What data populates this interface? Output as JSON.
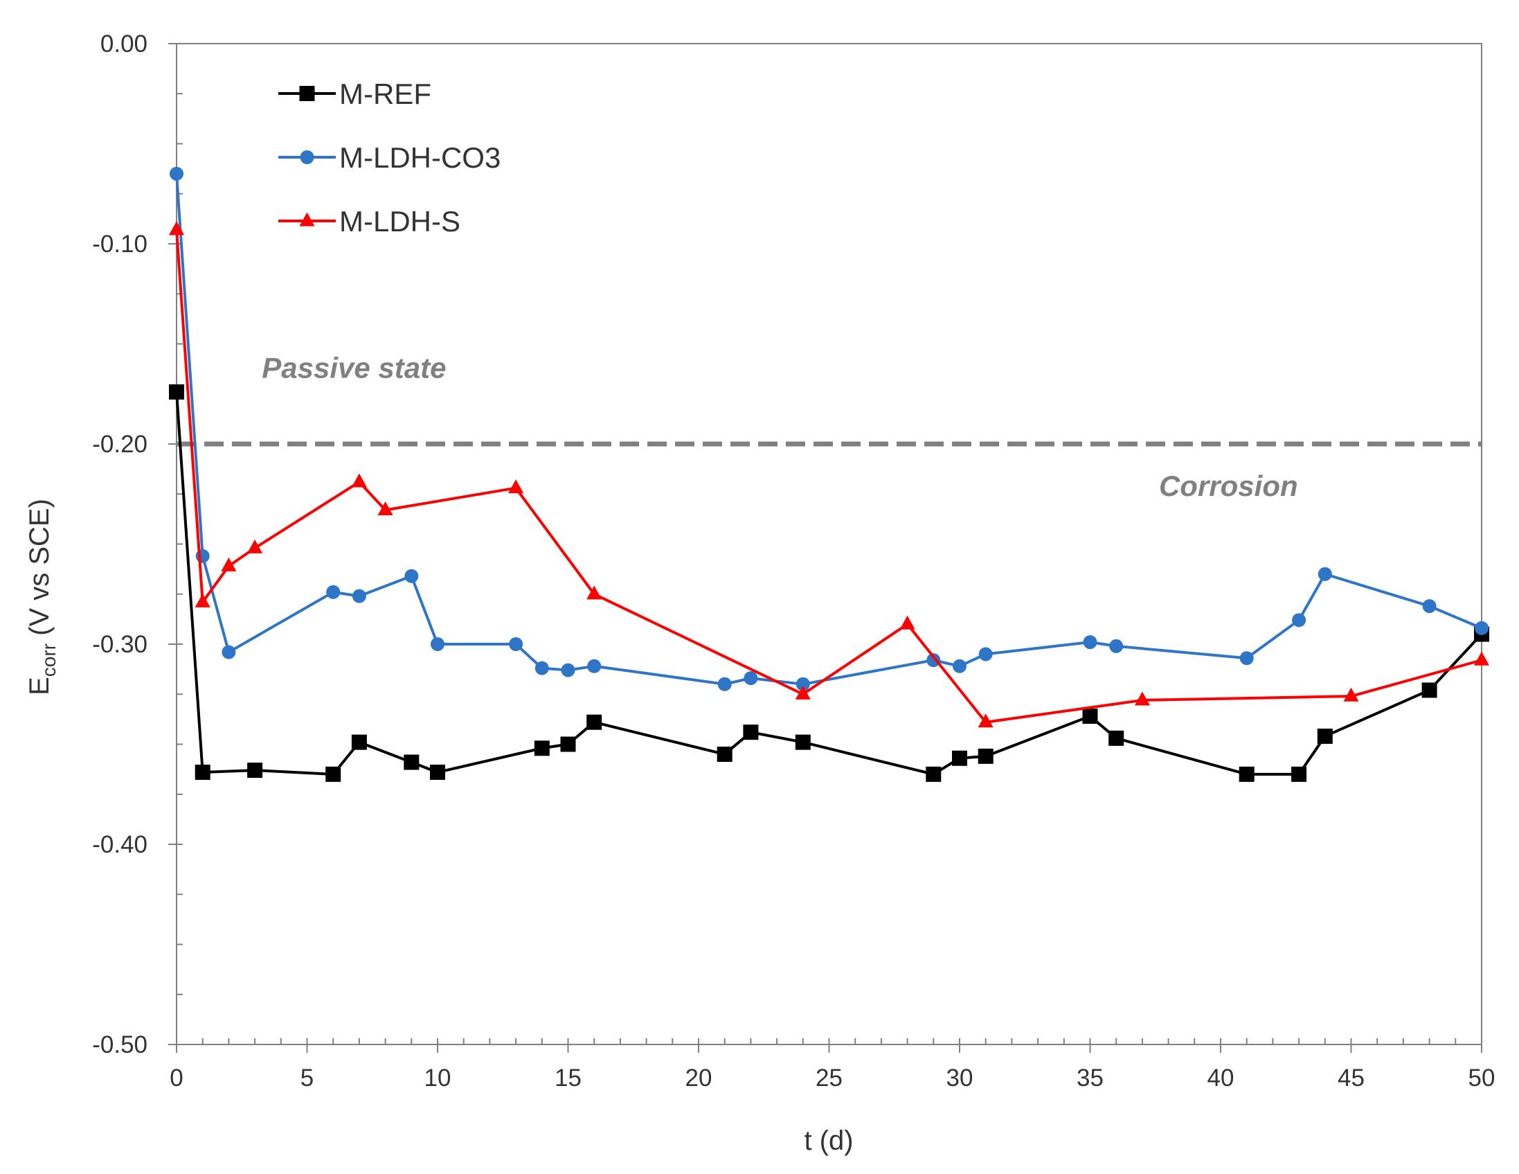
{
  "chart_data": {
    "type": "line",
    "title": "",
    "xlabel": "t (d)",
    "ylabel": "E",
    "ylabel_sub": "corr",
    "ylabel_suffix": " (V vs SCE)",
    "xlim": [
      0,
      50
    ],
    "ylim": [
      -0.5,
      0.0
    ],
    "xticks": [
      0,
      5,
      10,
      15,
      20,
      25,
      30,
      35,
      40,
      45,
      50
    ],
    "xtick_labels": [
      "0",
      "5",
      "10",
      "15",
      "20",
      "25",
      "30",
      "35",
      "40",
      "45",
      "50"
    ],
    "yticks": [
      0.0,
      -0.1,
      -0.2,
      -0.3,
      -0.4,
      -0.5
    ],
    "ytick_labels": [
      "0.00",
      "-0.10",
      "-0.20",
      "-0.30",
      "-0.40",
      "-0.50"
    ],
    "grid": false,
    "legend_position": "top-left",
    "series": [
      {
        "name": "M-REF",
        "color": "#000000",
        "marker": "square",
        "points": [
          [
            0,
            -0.174
          ],
          [
            1,
            -0.364
          ],
          [
            3,
            -0.363
          ],
          [
            6,
            -0.365
          ],
          [
            7,
            -0.349
          ],
          [
            9,
            -0.359
          ],
          [
            10,
            -0.364
          ],
          [
            14,
            -0.352
          ],
          [
            15,
            -0.35
          ],
          [
            16,
            -0.339
          ],
          [
            21,
            -0.355
          ],
          [
            22,
            -0.344
          ],
          [
            24,
            -0.349
          ],
          [
            29,
            -0.365
          ],
          [
            30,
            -0.357
          ],
          [
            31,
            -0.356
          ],
          [
            35,
            -0.336
          ],
          [
            36,
            -0.347
          ],
          [
            41,
            -0.365
          ],
          [
            43,
            -0.365
          ],
          [
            44,
            -0.346
          ],
          [
            48,
            -0.323
          ],
          [
            50,
            -0.295
          ]
        ]
      },
      {
        "name": "M-LDH-CO3",
        "color": "#2e75c8",
        "marker": "circle",
        "points": [
          [
            0,
            -0.065
          ],
          [
            1,
            -0.256
          ],
          [
            2,
            -0.304
          ],
          [
            6,
            -0.274
          ],
          [
            7,
            -0.276
          ],
          [
            9,
            -0.266
          ],
          [
            10,
            -0.3
          ],
          [
            13,
            -0.3
          ],
          [
            14,
            -0.312
          ],
          [
            15,
            -0.313
          ],
          [
            16,
            -0.311
          ],
          [
            21,
            -0.32
          ],
          [
            22,
            -0.317
          ],
          [
            24,
            -0.32
          ],
          [
            29,
            -0.308
          ],
          [
            30,
            -0.311
          ],
          [
            31,
            -0.305
          ],
          [
            35,
            -0.299
          ],
          [
            36,
            -0.301
          ],
          [
            41,
            -0.307
          ],
          [
            43,
            -0.288
          ],
          [
            44,
            -0.265
          ],
          [
            48,
            -0.281
          ],
          [
            50,
            -0.292
          ]
        ]
      },
      {
        "name": "M-LDH-S",
        "color": "#ff0000",
        "marker": "triangle",
        "points": [
          [
            0,
            -0.093
          ],
          [
            1,
            -0.279
          ],
          [
            2,
            -0.261
          ],
          [
            3,
            -0.252
          ],
          [
            7,
            -0.219
          ],
          [
            8,
            -0.233
          ],
          [
            13,
            -0.222
          ],
          [
            16,
            -0.275
          ],
          [
            24,
            -0.325
          ],
          [
            28,
            -0.29
          ],
          [
            31,
            -0.339
          ],
          [
            37,
            -0.328
          ],
          [
            45,
            -0.326
          ],
          [
            50,
            -0.308
          ]
        ]
      }
    ],
    "threshold": {
      "y": -0.2,
      "color": "#808080",
      "style": "dashed"
    },
    "annotations": [
      {
        "text": "Passive state",
        "x": 6.8,
        "y": -0.167
      },
      {
        "text": "Corrosion",
        "x": 40.3,
        "y": -0.226
      }
    ]
  }
}
